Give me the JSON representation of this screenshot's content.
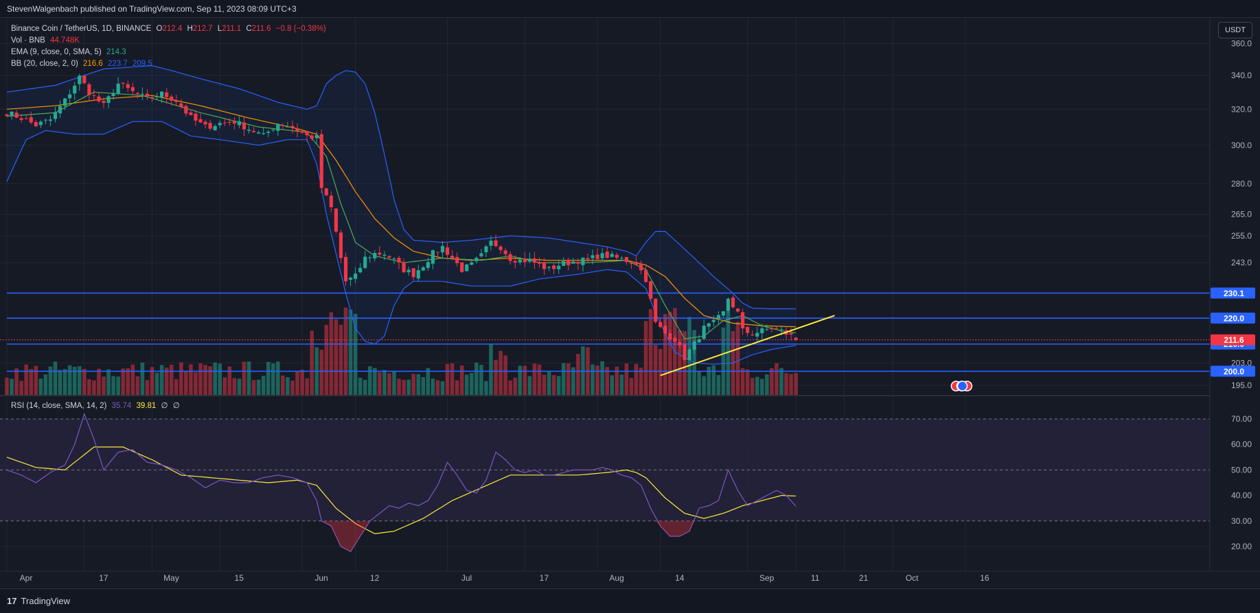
{
  "header": {
    "published": "StevenWalgenbach published on TradingView.com, Sep 11, 2023 08:09 UTC+3"
  },
  "legend": {
    "symbol": "Binance Coin / TetherUS, 1D, BINANCE",
    "o_label": "O",
    "o": "212.4",
    "h_label": "H",
    "h": "212.7",
    "l_label": "L",
    "l": "211.1",
    "c_label": "C",
    "c": "211.6",
    "change": "−0.8 (−0.38%)",
    "vol_label": "Vol · BNB",
    "vol": "44.748K",
    "ema_label": "EMA (9, close, 0, SMA, 5)",
    "ema": "214.3",
    "bb_label": "BB (20, close, 2, 0)",
    "bb_basis": "216.6",
    "bb_upper": "223.7",
    "bb_lower": "209.5"
  },
  "rsi_legend": {
    "label": "RSI (14, close, SMA, 14, 2)",
    "rsi": "35.74",
    "sma": "39.81",
    "na1": "∅",
    "na2": "∅"
  },
  "currency_button": "USDT",
  "footer": {
    "logo": "17",
    "brand": "TradingView"
  },
  "colors": {
    "bull": "#22ab94",
    "bear": "#f23645",
    "ema": "#4caf50",
    "bb_basis": "#ff9800",
    "bb_band": "#2962ff",
    "hline": "#2962ff",
    "trend": "#ffeb3b",
    "rsi": "#7e57c2",
    "rsi_ma": "#ffeb3b"
  },
  "chart_data": {
    "type": "candlestick",
    "title": "Binance Coin / TetherUS, 1D, BINANCE",
    "price_axis": {
      "scale": "log",
      "ylim": [
        190,
        368
      ],
      "ticks": [
        "360.0",
        "340.0",
        "320.0",
        "300.0",
        "280.0",
        "265.0",
        "255.0",
        "243.0",
        "203.0",
        "195.0"
      ]
    },
    "x_ticks": [
      {
        "day": 0,
        "label": "Apr"
      },
      {
        "day": 16,
        "label": "17"
      },
      {
        "day": 30,
        "label": "May"
      },
      {
        "day": 44,
        "label": "15"
      },
      {
        "day": 61,
        "label": "Jun"
      },
      {
        "day": 72,
        "label": "12"
      },
      {
        "day": 91,
        "label": "Jul"
      },
      {
        "day": 107,
        "label": "17"
      },
      {
        "day": 122,
        "label": "Aug"
      },
      {
        "day": 135,
        "label": "14"
      },
      {
        "day": 153,
        "label": "Sep"
      },
      {
        "day": 163,
        "label": "11"
      },
      {
        "day": 173,
        "label": "21"
      },
      {
        "day": 183,
        "label": "Oct"
      },
      {
        "day": 198,
        "label": "16"
      }
    ],
    "horizontal_levels": [
      "230.1",
      "220.0",
      "210.0",
      "200.0"
    ],
    "current_price": "211.6",
    "trendline": {
      "from": {
        "day": 135,
        "price": 198.5
      },
      "to": {
        "day": 171,
        "price": 221
      }
    },
    "close_anchors": [
      [
        0,
        318
      ],
      [
        3,
        315
      ],
      [
        6,
        311
      ],
      [
        9,
        314
      ],
      [
        12,
        325
      ],
      [
        15,
        339
      ],
      [
        17,
        330
      ],
      [
        20,
        322
      ],
      [
        23,
        335
      ],
      [
        26,
        330
      ],
      [
        29,
        326
      ],
      [
        32,
        329
      ],
      [
        35,
        325
      ],
      [
        38,
        315
      ],
      [
        41,
        310
      ],
      [
        44,
        312
      ],
      [
        47,
        313
      ],
      [
        50,
        309
      ],
      [
        53,
        305
      ],
      [
        56,
        312
      ],
      [
        59,
        310
      ],
      [
        62,
        305
      ],
      [
        64,
        304
      ],
      [
        65,
        278
      ],
      [
        67,
        268
      ],
      [
        69,
        245
      ],
      [
        70,
        235
      ],
      [
        72,
        237
      ],
      [
        74,
        245
      ],
      [
        76,
        247
      ],
      [
        78,
        247
      ],
      [
        80,
        244
      ],
      [
        82,
        240
      ],
      [
        84,
        238
      ],
      [
        86,
        242
      ],
      [
        88,
        247
      ],
      [
        90,
        250
      ],
      [
        92,
        245
      ],
      [
        94,
        240
      ],
      [
        96,
        242
      ],
      [
        98,
        246
      ],
      [
        100,
        252
      ],
      [
        102,
        250
      ],
      [
        104,
        245
      ],
      [
        106,
        244
      ],
      [
        108,
        244
      ],
      [
        110,
        242
      ],
      [
        112,
        240
      ],
      [
        114,
        242
      ],
      [
        116,
        243
      ],
      [
        118,
        244
      ],
      [
        120,
        244
      ],
      [
        122,
        246
      ],
      [
        124,
        246
      ],
      [
        126,
        245
      ],
      [
        128,
        244
      ],
      [
        130,
        243
      ],
      [
        132,
        236
      ],
      [
        134,
        218
      ],
      [
        136,
        214
      ],
      [
        138,
        212
      ],
      [
        140,
        205
      ],
      [
        142,
        210
      ],
      [
        144,
        216
      ],
      [
        146,
        218
      ],
      [
        148,
        222
      ],
      [
        149,
        228
      ],
      [
        151,
        222
      ],
      [
        152,
        215
      ],
      [
        154,
        214
      ],
      [
        156,
        215
      ],
      [
        158,
        216
      ],
      [
        160,
        215
      ],
      [
        162,
        213
      ],
      [
        163,
        211.6
      ]
    ],
    "ema9_anchors": [
      [
        0,
        316
      ],
      [
        10,
        318
      ],
      [
        18,
        330
      ],
      [
        28,
        328
      ],
      [
        40,
        318
      ],
      [
        52,
        310
      ],
      [
        62,
        307
      ],
      [
        66,
        294
      ],
      [
        69,
        270
      ],
      [
        72,
        252
      ],
      [
        76,
        246
      ],
      [
        82,
        243
      ],
      [
        90,
        245
      ],
      [
        98,
        244
      ],
      [
        104,
        246
      ],
      [
        110,
        243
      ],
      [
        120,
        243
      ],
      [
        128,
        244
      ],
      [
        132,
        240
      ],
      [
        136,
        225
      ],
      [
        140,
        212
      ],
      [
        144,
        213
      ],
      [
        148,
        219
      ],
      [
        152,
        221
      ],
      [
        156,
        217
      ],
      [
        160,
        215
      ],
      [
        163,
        214.3
      ]
    ],
    "bb_basis_anchors": [
      [
        0,
        320
      ],
      [
        10,
        322
      ],
      [
        20,
        326
      ],
      [
        30,
        328
      ],
      [
        40,
        322
      ],
      [
        50,
        315
      ],
      [
        60,
        309
      ],
      [
        64,
        306
      ],
      [
        68,
        292
      ],
      [
        72,
        276
      ],
      [
        76,
        263
      ],
      [
        80,
        254
      ],
      [
        84,
        248
      ],
      [
        90,
        245
      ],
      [
        96,
        244
      ],
      [
        104,
        245
      ],
      [
        112,
        244
      ],
      [
        120,
        244
      ],
      [
        128,
        244
      ],
      [
        132,
        242
      ],
      [
        136,
        237
      ],
      [
        140,
        228
      ],
      [
        144,
        221
      ],
      [
        150,
        218
      ],
      [
        156,
        217
      ],
      [
        163,
        216.6
      ]
    ],
    "bb_upper_anchors": [
      [
        0,
        330
      ],
      [
        10,
        334
      ],
      [
        20,
        344
      ],
      [
        30,
        346
      ],
      [
        34,
        343
      ],
      [
        40,
        338
      ],
      [
        48,
        332
      ],
      [
        56,
        324
      ],
      [
        62,
        320
      ],
      [
        64,
        322
      ],
      [
        66,
        335
      ],
      [
        68,
        340
      ],
      [
        70,
        343
      ],
      [
        72,
        342
      ],
      [
        74,
        335
      ],
      [
        76,
        318
      ],
      [
        78,
        295
      ],
      [
        80,
        272
      ],
      [
        82,
        258
      ],
      [
        84,
        253
      ],
      [
        90,
        252
      ],
      [
        96,
        253
      ],
      [
        104,
        255
      ],
      [
        112,
        254
      ],
      [
        118,
        252
      ],
      [
        124,
        250
      ],
      [
        128,
        248
      ],
      [
        130,
        246
      ],
      [
        132,
        252
      ],
      [
        134,
        257
      ],
      [
        136,
        257
      ],
      [
        138,
        253
      ],
      [
        142,
        245
      ],
      [
        146,
        237
      ],
      [
        150,
        230
      ],
      [
        152,
        226
      ],
      [
        154,
        224
      ],
      [
        158,
        223.7
      ],
      [
        163,
        223.7
      ]
    ],
    "bb_lower_anchors": [
      [
        0,
        281
      ],
      [
        4,
        303
      ],
      [
        8,
        308
      ],
      [
        14,
        306
      ],
      [
        20,
        306
      ],
      [
        26,
        313
      ],
      [
        32,
        313
      ],
      [
        38,
        305
      ],
      [
        44,
        303
      ],
      [
        52,
        300
      ],
      [
        58,
        303
      ],
      [
        62,
        303
      ],
      [
        64,
        290
      ],
      [
        66,
        265
      ],
      [
        68,
        247
      ],
      [
        70,
        230
      ],
      [
        72,
        216
      ],
      [
        74,
        211
      ],
      [
        76,
        210
      ],
      [
        78,
        213
      ],
      [
        80,
        225
      ],
      [
        82,
        232
      ],
      [
        84,
        235
      ],
      [
        90,
        235
      ],
      [
        96,
        233
      ],
      [
        104,
        233
      ],
      [
        110,
        236
      ],
      [
        118,
        238
      ],
      [
        124,
        240
      ],
      [
        128,
        239
      ],
      [
        132,
        232
      ],
      [
        134,
        222
      ],
      [
        136,
        214
      ],
      [
        138,
        207
      ],
      [
        142,
        203
      ],
      [
        146,
        202.5
      ],
      [
        150,
        203
      ],
      [
        154,
        206
      ],
      [
        158,
        208
      ],
      [
        163,
        209.5
      ]
    ],
    "rsi_axis": {
      "ylim": [
        10,
        75
      ],
      "ticks": [
        "70.00",
        "60.00",
        "50.00",
        "40.00",
        "30.00",
        "20.00"
      ]
    },
    "rsi_anchors": [
      [
        0,
        50
      ],
      [
        3,
        48
      ],
      [
        6,
        45
      ],
      [
        9,
        49
      ],
      [
        12,
        52
      ],
      [
        14,
        60
      ],
      [
        16,
        72
      ],
      [
        18,
        62
      ],
      [
        20,
        50
      ],
      [
        23,
        57
      ],
      [
        26,
        58
      ],
      [
        29,
        53
      ],
      [
        32,
        52
      ],
      [
        35,
        50
      ],
      [
        38,
        47
      ],
      [
        41,
        43
      ],
      [
        44,
        46
      ],
      [
        47,
        45
      ],
      [
        50,
        45
      ],
      [
        53,
        47
      ],
      [
        56,
        48
      ],
      [
        59,
        47
      ],
      [
        62,
        45
      ],
      [
        64,
        38
      ],
      [
        65,
        30
      ],
      [
        67,
        28
      ],
      [
        69,
        20
      ],
      [
        71,
        18
      ],
      [
        73,
        24
      ],
      [
        75,
        30
      ],
      [
        77,
        33
      ],
      [
        79,
        36
      ],
      [
        81,
        35
      ],
      [
        83,
        37
      ],
      [
        85,
        36
      ],
      [
        87,
        38
      ],
      [
        89,
        44
      ],
      [
        91,
        53
      ],
      [
        93,
        48
      ],
      [
        95,
        42
      ],
      [
        97,
        41
      ],
      [
        99,
        46
      ],
      [
        101,
        57
      ],
      [
        103,
        54
      ],
      [
        105,
        50
      ],
      [
        107,
        49
      ],
      [
        109,
        50
      ],
      [
        111,
        48
      ],
      [
        113,
        48
      ],
      [
        115,
        49
      ],
      [
        117,
        50
      ],
      [
        119,
        50
      ],
      [
        121,
        50
      ],
      [
        123,
        51
      ],
      [
        125,
        50
      ],
      [
        127,
        48
      ],
      [
        129,
        47
      ],
      [
        131,
        44
      ],
      [
        133,
        35
      ],
      [
        135,
        28
      ],
      [
        137,
        24
      ],
      [
        139,
        24
      ],
      [
        141,
        26
      ],
      [
        143,
        35
      ],
      [
        145,
        36
      ],
      [
        147,
        38
      ],
      [
        149,
        50
      ],
      [
        151,
        42
      ],
      [
        153,
        36
      ],
      [
        155,
        38
      ],
      [
        157,
        40
      ],
      [
        159,
        42
      ],
      [
        161,
        40
      ],
      [
        163,
        35.74
      ]
    ],
    "rsi_ma_anchors": [
      [
        0,
        55
      ],
      [
        6,
        51
      ],
      [
        12,
        50
      ],
      [
        18,
        59
      ],
      [
        24,
        59
      ],
      [
        30,
        54
      ],
      [
        36,
        48
      ],
      [
        42,
        47
      ],
      [
        48,
        46
      ],
      [
        54,
        45
      ],
      [
        60,
        46
      ],
      [
        64,
        44
      ],
      [
        68,
        35
      ],
      [
        72,
        29
      ],
      [
        76,
        25
      ],
      [
        80,
        26
      ],
      [
        86,
        31
      ],
      [
        92,
        38
      ],
      [
        98,
        43
      ],
      [
        104,
        48
      ],
      [
        110,
        48
      ],
      [
        118,
        48
      ],
      [
        124,
        49
      ],
      [
        128,
        50
      ],
      [
        130,
        49
      ],
      [
        132,
        47
      ],
      [
        136,
        39
      ],
      [
        140,
        33
      ],
      [
        144,
        31
      ],
      [
        148,
        33
      ],
      [
        152,
        36
      ],
      [
        156,
        38
      ],
      [
        160,
        40
      ],
      [
        163,
        39.81
      ]
    ]
  }
}
